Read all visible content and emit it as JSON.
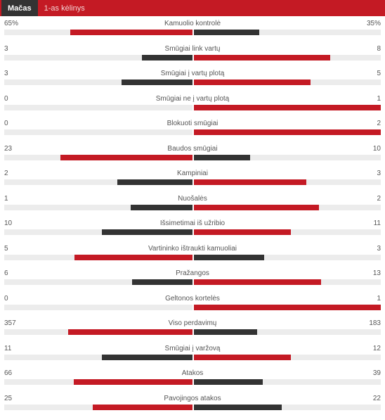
{
  "tabs": [
    {
      "label": "Mačas",
      "active": true
    },
    {
      "label": "1-as kėlinys",
      "active": false
    }
  ],
  "colors": {
    "home": "#c41a24",
    "away": "#333333",
    "track": "#ececec"
  },
  "stats": [
    {
      "name": "Kamuolio kontrolė",
      "home": "65%",
      "away": "35%",
      "home_share": 0.65,
      "away_share": 0.35,
      "leader": "home"
    },
    {
      "name": "Smūgiai link vartų",
      "home": "3",
      "away": "8",
      "home_share": 0.27,
      "away_share": 0.73,
      "leader": "away"
    },
    {
      "name": "Smūgiai į vartų plotą",
      "home": "3",
      "away": "5",
      "home_share": 0.375,
      "away_share": 0.625,
      "leader": "away"
    },
    {
      "name": "Smūgiai ne į vartų plotą",
      "home": "0",
      "away": "1",
      "home_share": 0,
      "away_share": 1,
      "leader": "away"
    },
    {
      "name": "Blokuoti smūgiai",
      "home": "0",
      "away": "2",
      "home_share": 0,
      "away_share": 1,
      "leader": "away"
    },
    {
      "name": "Baudos smūgiai",
      "home": "23",
      "away": "10",
      "home_share": 0.7,
      "away_share": 0.3,
      "leader": "home"
    },
    {
      "name": "Kampiniai",
      "home": "2",
      "away": "3",
      "home_share": 0.4,
      "away_share": 0.6,
      "leader": "away"
    },
    {
      "name": "Nuošalės",
      "home": "1",
      "away": "2",
      "home_share": 0.33,
      "away_share": 0.67,
      "leader": "away"
    },
    {
      "name": "Išsimetimai iš užribio",
      "home": "10",
      "away": "11",
      "home_share": 0.48,
      "away_share": 0.52,
      "leader": "away"
    },
    {
      "name": "Vartininko ištraukti kamuoliai",
      "home": "5",
      "away": "3",
      "home_share": 0.625,
      "away_share": 0.375,
      "leader": "home"
    },
    {
      "name": "Pražangos",
      "home": "6",
      "away": "13",
      "home_share": 0.32,
      "away_share": 0.68,
      "leader": "away"
    },
    {
      "name": "Geltonos kortelės",
      "home": "0",
      "away": "1",
      "home_share": 0,
      "away_share": 1,
      "leader": "away"
    },
    {
      "name": "Viso perdavimų",
      "home": "357",
      "away": "183",
      "home_share": 0.66,
      "away_share": 0.34,
      "leader": "home"
    },
    {
      "name": "Smūgiai į varžovą",
      "home": "11",
      "away": "12",
      "home_share": 0.48,
      "away_share": 0.52,
      "leader": "away"
    },
    {
      "name": "Atakos",
      "home": "66",
      "away": "39",
      "home_share": 0.63,
      "away_share": 0.37,
      "leader": "home"
    },
    {
      "name": "Pavojingos atakos",
      "home": "25",
      "away": "22",
      "home_share": 0.53,
      "away_share": 0.47,
      "leader": "home"
    }
  ]
}
